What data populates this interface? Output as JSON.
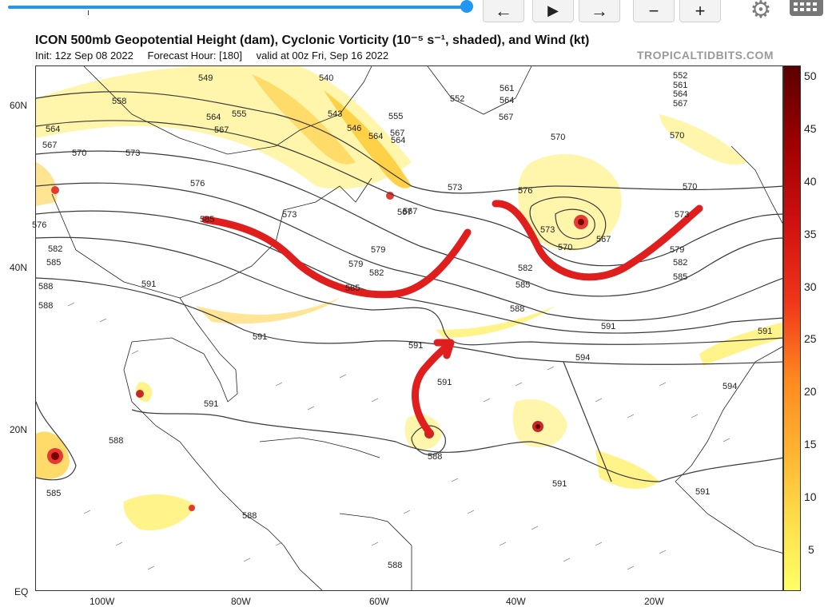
{
  "toolbar": {
    "slider_progress": 1.0,
    "buttons": [
      {
        "name": "back-button",
        "glyph": "←"
      },
      {
        "name": "play-button",
        "glyph": "▶"
      },
      {
        "name": "forward-button",
        "glyph": "→"
      },
      {
        "name": "zoom-out-button",
        "glyph": "−"
      },
      {
        "name": "zoom-in-button",
        "glyph": "+"
      }
    ],
    "settings_icon": "gear-icon",
    "keyboard_icon": "keyboard-icon"
  },
  "map": {
    "title": "ICON 500mb Geopotential Height (dam), Cyclonic Vorticity (10⁻⁵ s⁻¹, shaded), and Wind (kt)",
    "init": "Init: 12z Sep 08 2022",
    "forecast_hour": "Forecast Hour: [180]",
    "valid": "valid at 00z Fri, Sep 16 2022",
    "credit": "TROPICALTIDBITS.COM",
    "lat_labels": [
      "60N",
      "40N",
      "20N",
      "EQ"
    ],
    "lon_labels": [
      "100W",
      "80W",
      "60W",
      "40W",
      "20W"
    ],
    "contour_labels": [
      "549",
      "552",
      "558",
      "561",
      "564",
      "567",
      "570",
      "573",
      "576",
      "579",
      "582",
      "585",
      "588",
      "591",
      "594",
      "540",
      "543",
      "546",
      "555"
    ],
    "colorbar_ticks": [
      "50",
      "45",
      "40",
      "35",
      "30",
      "25",
      "20",
      "15",
      "10",
      "5"
    ],
    "colors": {
      "arrow": "#e01e1e",
      "contour": "#333333",
      "shade_low": "#fff176",
      "shade_high": "#7a0000",
      "accent": "#2196f3"
    }
  }
}
